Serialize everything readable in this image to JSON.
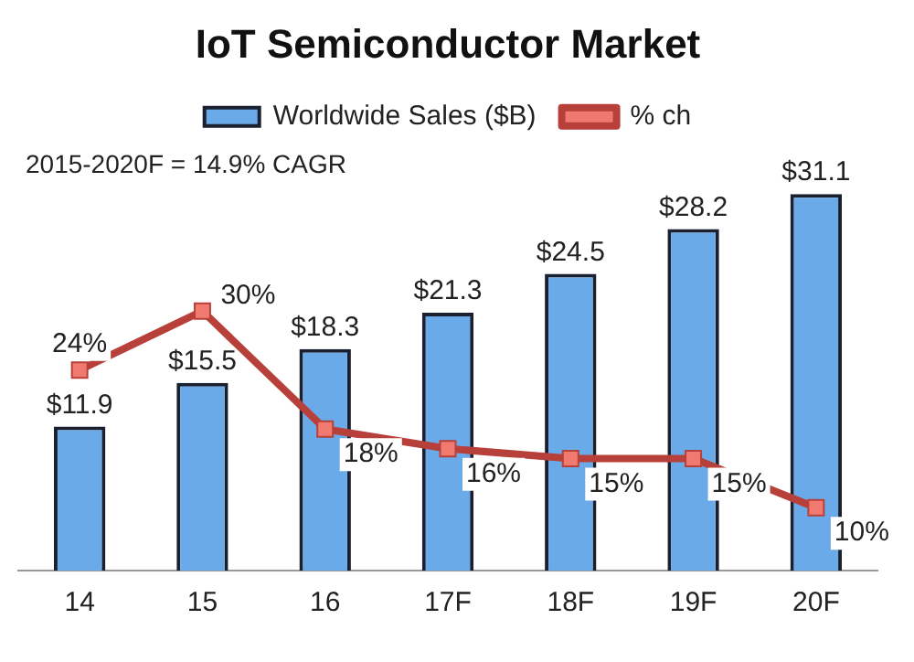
{
  "chart_data": {
    "type": "bar",
    "title": "IoT Semiconductor Market",
    "annotations": [
      "2015-2020F = 14.9% CAGR"
    ],
    "categories": [
      "14",
      "15",
      "16",
      "17F",
      "18F",
      "19F",
      "20F"
    ],
    "series": [
      {
        "name": "Worldwide Sales ($B)",
        "color": "#6aaae8",
        "values": [
          11.9,
          15.5,
          18.3,
          21.3,
          24.5,
          28.2,
          31.1
        ],
        "value_labels": [
          "$11.9",
          "$15.5",
          "$18.3",
          "$21.3",
          "$24.5",
          "$28.2",
          "$31.1"
        ]
      },
      {
        "name": "% ch",
        "type": "line",
        "axis": "y2",
        "color": "#b8403a",
        "marker": "square",
        "values": [
          24,
          30,
          18,
          16,
          15,
          15,
          10
        ],
        "value_labels": [
          "24%",
          "30%",
          "18%",
          "16%",
          "15%",
          "15%",
          "10%"
        ]
      }
    ],
    "legend": "top",
    "grid": false,
    "tick_labels": "x"
  }
}
